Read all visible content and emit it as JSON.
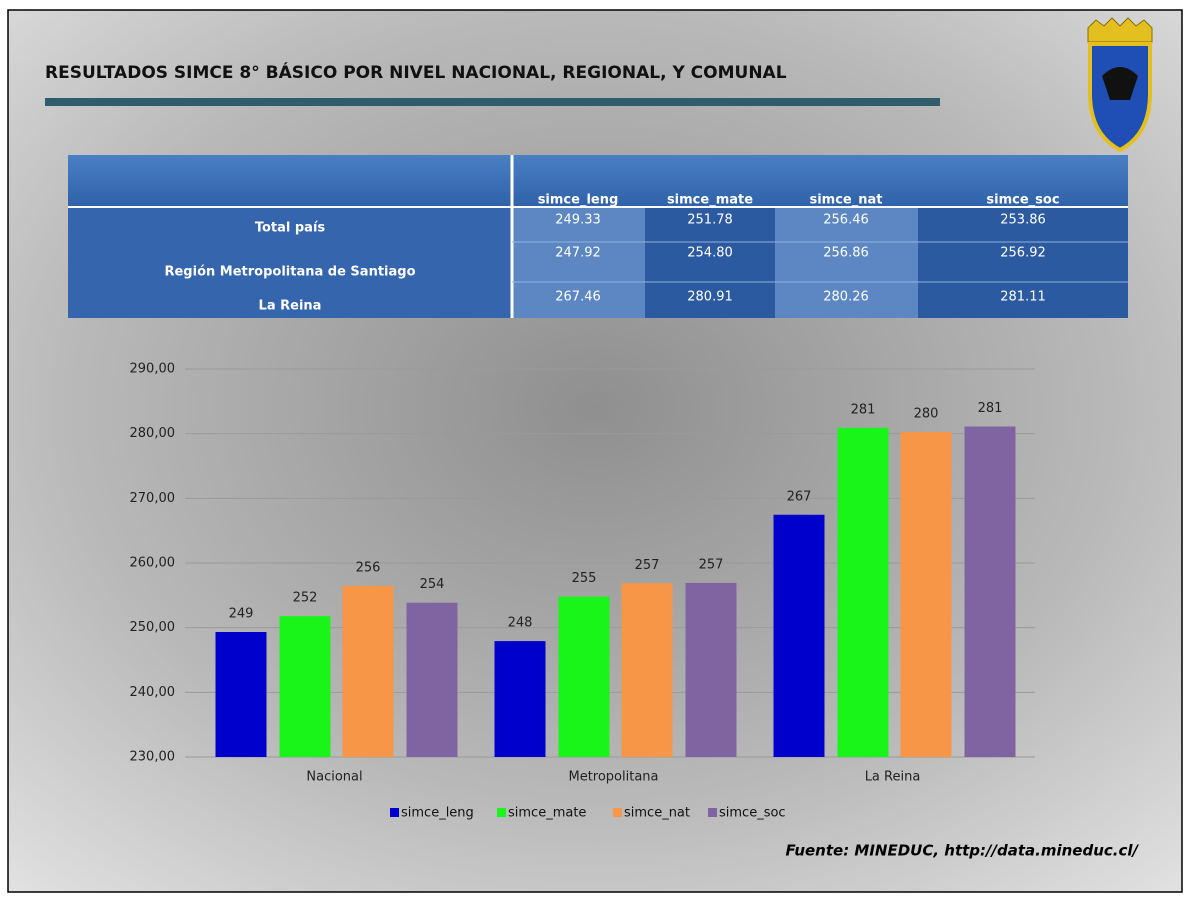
{
  "title": "RESULTADOS SIMCE 8° BÁSICO POR NIVEL NACIONAL, REGIONAL, Y COMUNAL",
  "table": {
    "columns": [
      "simce_leng",
      "simce_mate",
      "simce_nat",
      "simce_soc"
    ],
    "rows": [
      {
        "label": "Total país",
        "values": [
          "249.33",
          "251.78",
          "256.46",
          "253.86"
        ]
      },
      {
        "label": "Región Metropolitana de Santiago",
        "values": [
          "247.92",
          "254.80",
          "256.86",
          "256.92"
        ]
      },
      {
        "label": "La Reina",
        "values": [
          "267.46",
          "280.91",
          "280.26",
          "281.11"
        ]
      }
    ]
  },
  "chart_data": {
    "type": "bar",
    "categories": [
      "Nacional",
      "Metropolitana",
      "La Reina"
    ],
    "series": [
      {
        "name": "simce_leng",
        "color": "#0000cc",
        "values": [
          249.33,
          247.92,
          267.46
        ],
        "value_labels": [
          "249",
          "248",
          "267"
        ]
      },
      {
        "name": "simce_mate",
        "color": "#19f519",
        "values": [
          251.78,
          254.8,
          280.91
        ],
        "value_labels": [
          "252",
          "255",
          "281"
        ]
      },
      {
        "name": "simce_nat",
        "color": "#f79646",
        "values": [
          256.46,
          256.86,
          280.26
        ],
        "value_labels": [
          "256",
          "257",
          "280"
        ]
      },
      {
        "name": "simce_soc",
        "color": "#8064a2",
        "values": [
          253.86,
          256.92,
          281.11
        ],
        "value_labels": [
          "254",
          "257",
          "281"
        ]
      }
    ],
    "ylim": [
      230,
      290
    ],
    "yticks": [
      {
        "value": 230,
        "label": "230,00"
      },
      {
        "value": 240,
        "label": "240,00"
      },
      {
        "value": 250,
        "label": "250,00"
      },
      {
        "value": 260,
        "label": "260,00"
      },
      {
        "value": 270,
        "label": "270,00"
      },
      {
        "value": 280,
        "label": "280,00"
      },
      {
        "value": 290,
        "label": "290,00"
      }
    ],
    "grid": true,
    "legend": "bottom"
  },
  "source": "Fuente: MINEDUC, http://data.mineduc.cl/"
}
